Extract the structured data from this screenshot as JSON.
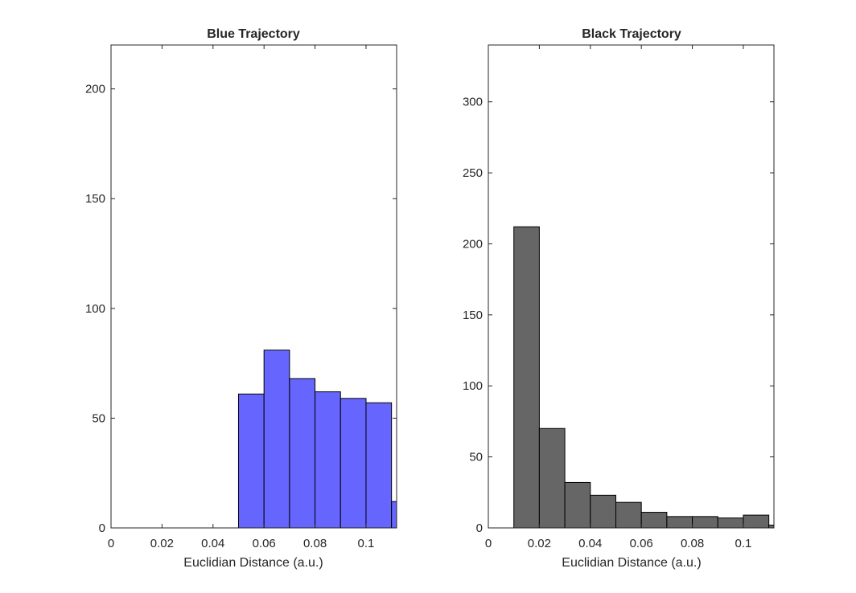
{
  "chart_data": [
    {
      "type": "bar",
      "title": "Blue Trajectory",
      "xlabel": "Euclidian Distance (a.u.)",
      "ylabel": "",
      "xlim": [
        0,
        0.112
      ],
      "ylim": [
        0,
        220
      ],
      "xticks": [
        "0",
        "0.02",
        "0.04",
        "0.06",
        "0.08",
        "0.1"
      ],
      "xtick_values": [
        0,
        0.02,
        0.04,
        0.06,
        0.08,
        0.1
      ],
      "yticks": [
        "0",
        "50",
        "100",
        "150",
        "200"
      ],
      "ytick_values": [
        0,
        50,
        100,
        150,
        200
      ],
      "bin_edges": [
        0.05,
        0.06,
        0.07,
        0.08,
        0.09,
        0.1,
        0.11,
        0.12
      ],
      "values": [
        61,
        81,
        68,
        62,
        59,
        57,
        12
      ],
      "color": "#6666ff",
      "grid": false
    },
    {
      "type": "bar",
      "title": "Black Trajectory",
      "xlabel": "Euclidian Distance (a.u.)",
      "ylabel": "",
      "xlim": [
        0,
        0.112
      ],
      "ylim": [
        0,
        340
      ],
      "xticks": [
        "0",
        "0.02",
        "0.04",
        "0.06",
        "0.08",
        "0.1"
      ],
      "xtick_values": [
        0,
        0.02,
        0.04,
        0.06,
        0.08,
        0.1
      ],
      "yticks": [
        "0",
        "50",
        "100",
        "150",
        "200",
        "250",
        "300"
      ],
      "ytick_values": [
        0,
        50,
        100,
        150,
        200,
        250,
        300
      ],
      "bin_edges": [
        0.01,
        0.02,
        0.03,
        0.04,
        0.05,
        0.06,
        0.07,
        0.08,
        0.09,
        0.1,
        0.11,
        0.12
      ],
      "values": [
        212,
        70,
        32,
        23,
        18,
        11,
        8,
        8,
        7,
        9,
        2
      ],
      "color": "#666666",
      "grid": false
    }
  ]
}
